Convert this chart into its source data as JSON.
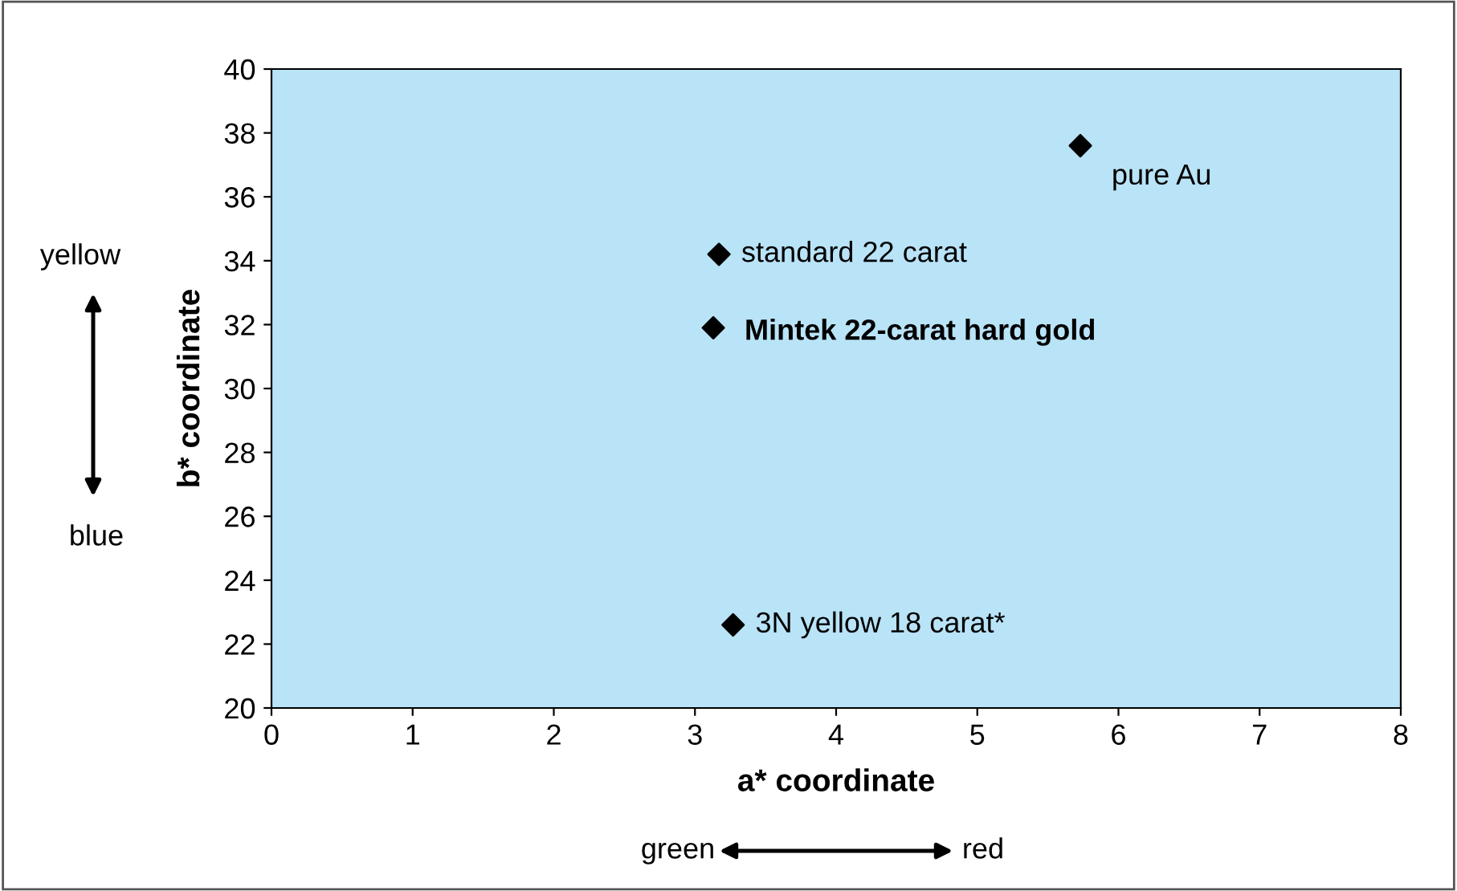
{
  "chart_data": {
    "type": "scatter",
    "xlabel": "a* coordinate",
    "ylabel": "b* coordinate",
    "x": [
      5.73,
      3.17,
      3.13,
      3.27
    ],
    "series": [
      {
        "color": "#000000",
        "values": [
          37.6,
          34.2,
          31.9,
          22.6
        ]
      }
    ],
    "marker": "diamond",
    "grid": false,
    "legend": false,
    "xlim": [
      0,
      8
    ],
    "ylim": [
      20,
      40
    ],
    "xticks": [
      0,
      1,
      2,
      3,
      4,
      5,
      6,
      7,
      8
    ],
    "yticks": [
      20,
      22,
      24,
      26,
      28,
      30,
      32,
      34,
      36,
      38,
      40
    ],
    "annotations": [
      {
        "text": "pure Au",
        "x": 5.73,
        "y": 37.6
      },
      {
        "text": "standard 22 carat",
        "x": 3.17,
        "y": 34.2
      },
      {
        "text": "Mintek 22-carat hard gold",
        "x": 3.13,
        "y": 31.9
      },
      {
        "text": "3N yellow 18 carat*",
        "x": 3.27,
        "y": 22.6
      },
      "yellow",
      "blue",
      "green",
      "red"
    ]
  }
}
